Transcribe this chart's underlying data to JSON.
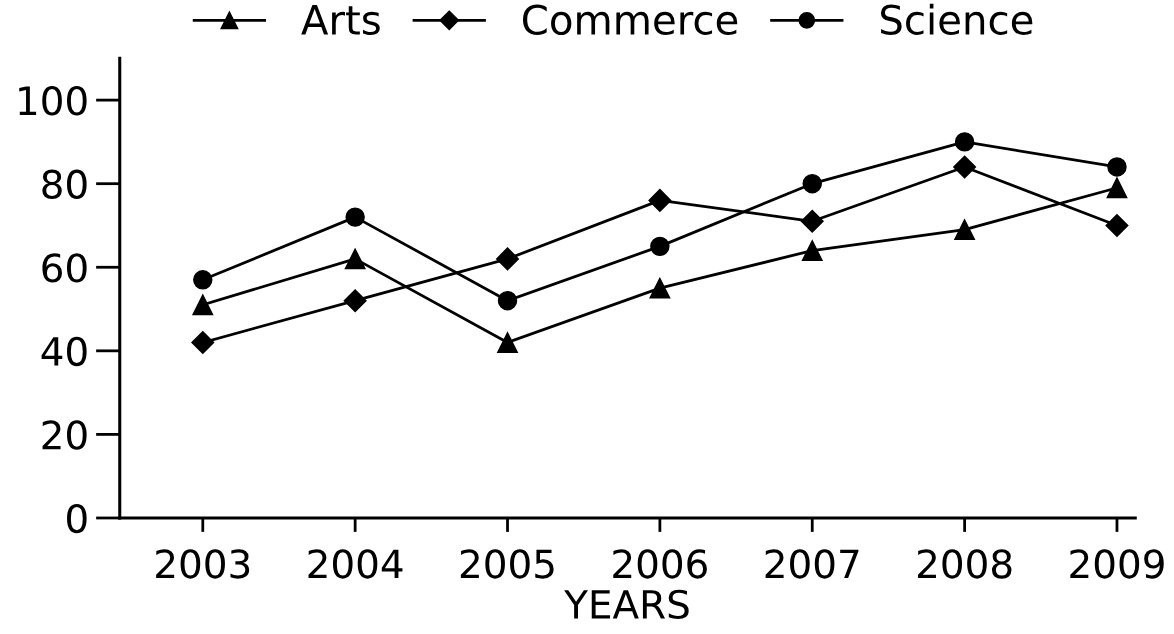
{
  "chart_data": {
    "type": "line",
    "xlabel": "YEARS",
    "categories": [
      "2003",
      "2004",
      "2005",
      "2006",
      "2007",
      "2008",
      "2009"
    ],
    "series": [
      {
        "name": "Arts",
        "color": "#000000",
        "marker": "triangle",
        "values": [
          51,
          62,
          42,
          55,
          64,
          69,
          79
        ]
      },
      {
        "name": "Commerce",
        "color": "#000000",
        "marker": "diamond",
        "values": [
          42,
          52,
          62,
          76,
          71,
          84,
          70
        ]
      },
      {
        "name": "Science",
        "color": "#000000",
        "marker": "circle",
        "values": [
          57,
          72,
          52,
          65,
          80,
          90,
          84
        ]
      }
    ],
    "ylim": [
      0,
      110
    ],
    "yticks": [
      0,
      20,
      40,
      60,
      80,
      100
    ],
    "grid": false,
    "legend": "top",
    "line_style": "solid"
  }
}
